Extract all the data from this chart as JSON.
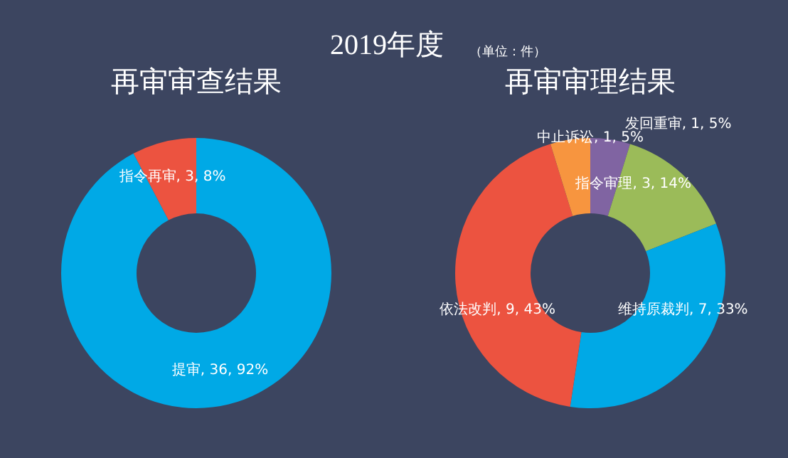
{
  "chart_data": [
    {
      "type": "donut",
      "title": "再审审查结果",
      "annotations": [
        "2019年度",
        "（单位：件）"
      ],
      "categories": [
        "提审",
        "指令再审"
      ],
      "values": [
        36,
        3
      ],
      "colors": [
        "#00a9e6",
        "#ec5340"
      ],
      "value_labels": [
        "36, 92%",
        "3, 8%"
      ],
      "legend": false
    },
    {
      "type": "donut",
      "title": "再审审理结果",
      "categories": [
        "发回重审",
        "指令审理",
        "维持原裁判",
        "依法改判",
        "中止诉讼"
      ],
      "values": [
        1,
        3,
        7,
        9,
        1
      ],
      "colors": [
        "#8064a2",
        "#9bbb59",
        "#00a9e6",
        "#ec5340",
        "#f7953f"
      ],
      "value_labels": [
        "1, 5%",
        "3, 14%",
        "7, 33%",
        "9, 43%",
        "1, 5%"
      ],
      "legend": false
    }
  ]
}
